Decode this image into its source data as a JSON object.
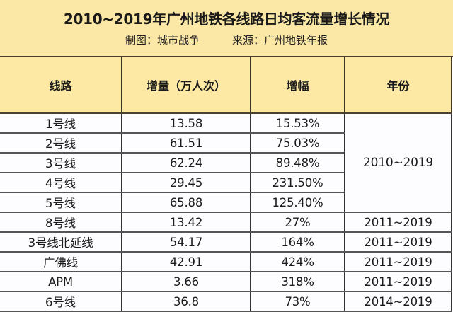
{
  "header": {
    "title": "2010~2019年广州地铁各线路日均客流量增长情况",
    "credit_label": "制图：城市战争",
    "source_label": "来源：广州地铁年报"
  },
  "table": {
    "columns": [
      "线路",
      "增量（万人次）",
      "增幅",
      "年份"
    ],
    "rows": [
      {
        "line": "1号线",
        "increase": "13.58",
        "growth": "15.53%",
        "years": "2010~2019"
      },
      {
        "line": "2号线",
        "increase": "61.51",
        "growth": "75.03%",
        "years": "2010~2019"
      },
      {
        "line": "3号线",
        "increase": "62.24",
        "growth": "89.48%",
        "years": "2010~2019"
      },
      {
        "line": "4号线",
        "increase": "29.45",
        "growth": "231.50%",
        "years": "2010~2019"
      },
      {
        "line": "5号线",
        "increase": "65.88",
        "growth": "125.40%",
        "years": "2010~2019"
      },
      {
        "line": "8号线",
        "increase": "13.42",
        "growth": "27%",
        "years": "2011~2019"
      },
      {
        "line": "3号线北延线",
        "increase": "54.17",
        "growth": "164%",
        "years": "2011~2019"
      },
      {
        "line": "广佛线",
        "increase": "42.91",
        "growth": "424%",
        "years": "2011~2019"
      },
      {
        "line": "APM",
        "increase": "3.66",
        "growth": "318%",
        "years": "2011~2019"
      },
      {
        "line": "6号线",
        "increase": "36.8",
        "growth": "73%",
        "years": "2014~2019"
      }
    ]
  },
  "colors": {
    "header_bg": "#fce8a6",
    "body_bg": "#fdfdff",
    "border": "#333333"
  }
}
